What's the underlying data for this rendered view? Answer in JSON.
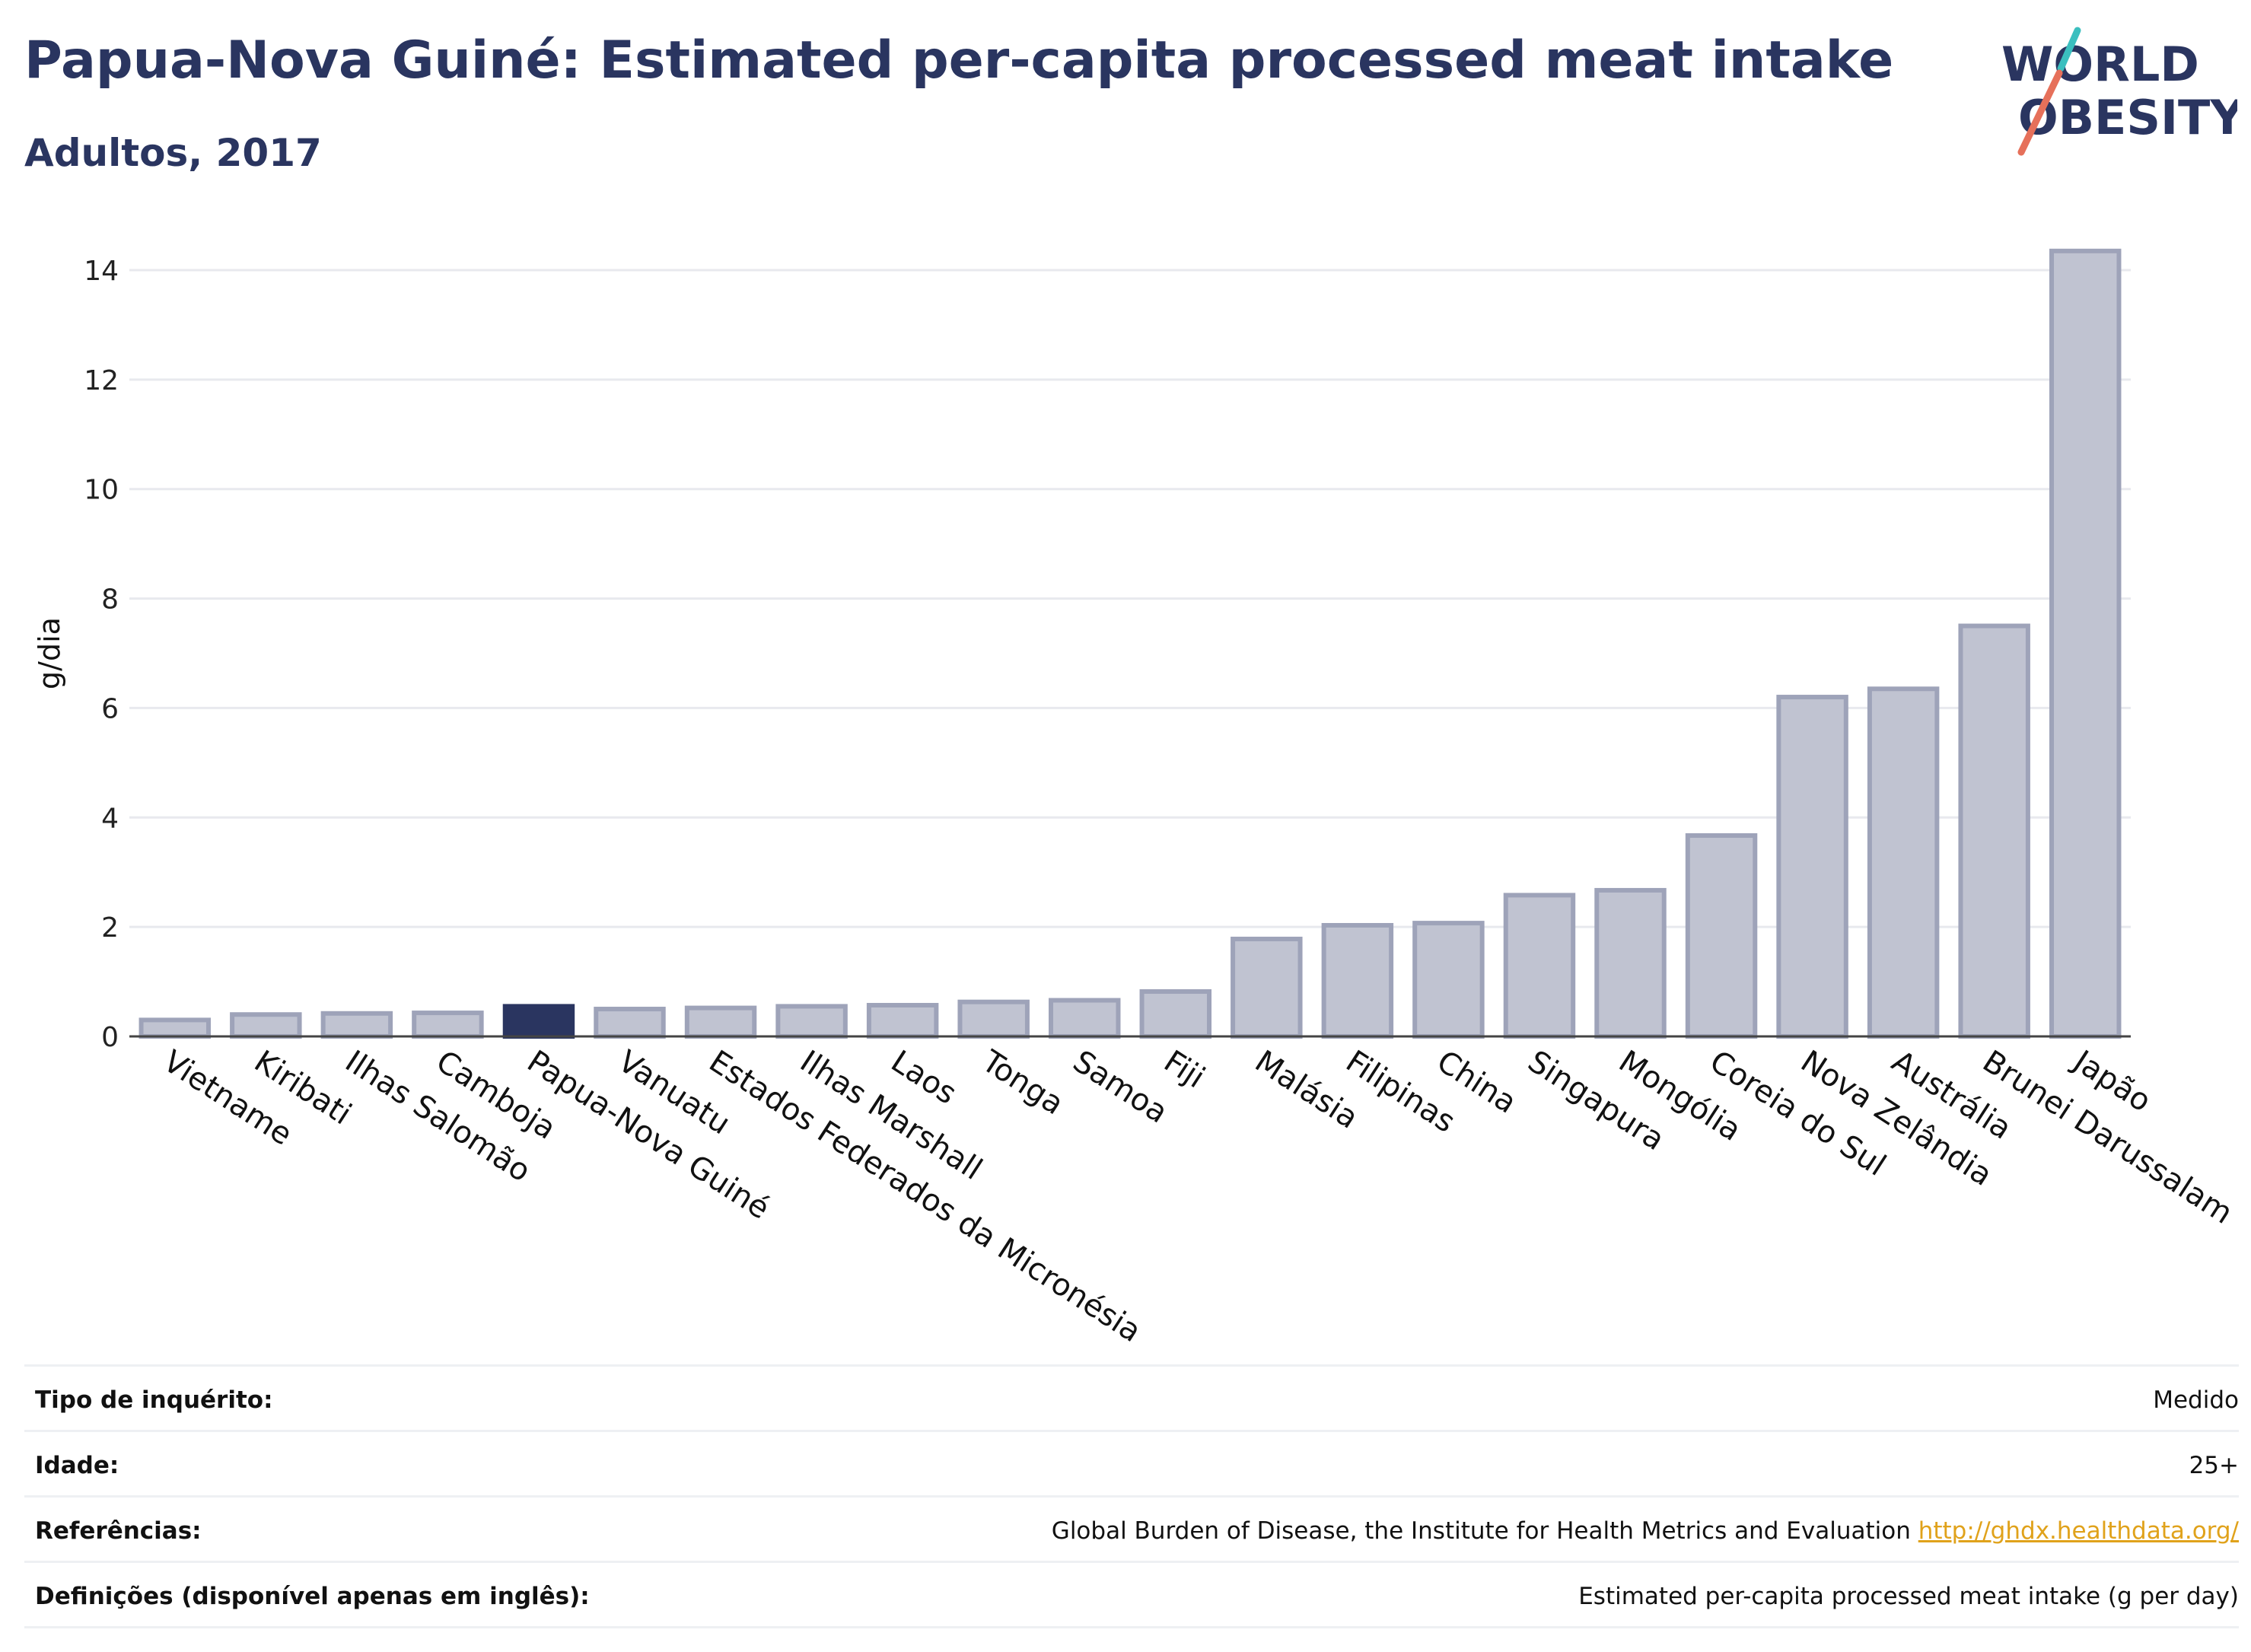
{
  "title": "Papua-Nova Guiné: Estimated per-capita processed meat intake",
  "subtitle": "Adultos, 2017",
  "logo": {
    "line1": "WORLD",
    "line2": "OBESITY"
  },
  "colors": {
    "highlight": "#2a3560",
    "bar_fill": "#c0c3d1",
    "bar_stroke": "#9ea3b9",
    "grid": "#e8e9ee",
    "logo_teal": "#3bbfbf",
    "logo_coral": "#e6705a",
    "link": "#e0a21b"
  },
  "chart_data": {
    "type": "bar",
    "ylabel": "g/dia",
    "ylim": [
      0,
      14.6
    ],
    "yticks": [
      0,
      2,
      4,
      6,
      8,
      10,
      12,
      14
    ],
    "grid": true,
    "highlight_category": "Papua-Nova Guiné",
    "categories": [
      "Vietname",
      "Kiribati",
      "Ilhas Salomão",
      "Camboja",
      "Papua-Nova Guiné",
      "Vanuatu",
      "Estados Federados da Micronésia",
      "Ilhas Marshall",
      "Laos",
      "Tonga",
      "Samoa",
      "Fiji",
      "Malásia",
      "Filipinas",
      "China",
      "Singapura",
      "Mongólia",
      "Coreia do Sul",
      "Nova Zelândia",
      "Austrália",
      "Brunei Darussalam",
      "Japão"
    ],
    "values": [
      0.3,
      0.4,
      0.42,
      0.43,
      0.55,
      0.5,
      0.52,
      0.55,
      0.57,
      0.63,
      0.66,
      0.82,
      1.78,
      2.03,
      2.07,
      2.58,
      2.67,
      3.67,
      6.2,
      6.35,
      7.5,
      14.35
    ]
  },
  "meta": [
    {
      "label": "Tipo de inquérito:",
      "value": "Medido"
    },
    {
      "label": "Idade:",
      "value": "25+"
    },
    {
      "label": "Referências:",
      "value": "Global Burden of Disease, the Institute for Health Metrics and Evaluation",
      "link": "http://ghdx.healthdata.org/"
    },
    {
      "label": "Definições (disponível apenas em inglês):",
      "value": "Estimated per-capita processed meat intake (g per day)"
    }
  ]
}
